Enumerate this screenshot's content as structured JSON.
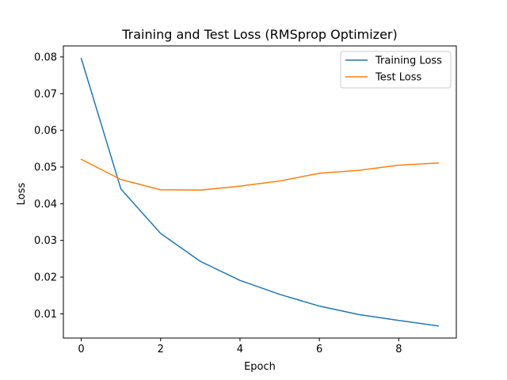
{
  "chart_data": {
    "type": "line",
    "title": "Training and Test Loss (RMSprop Optimizer)",
    "xlabel": "Epoch",
    "ylabel": "Loss",
    "x": [
      0,
      1,
      2,
      3,
      4,
      5,
      6,
      7,
      8,
      9
    ],
    "xticks": [
      "0",
      "2",
      "4",
      "6",
      "8"
    ],
    "xtick_values": [
      0,
      2,
      4,
      6,
      8
    ],
    "yticks": [
      "0.01",
      "0.02",
      "0.03",
      "0.04",
      "0.05",
      "0.06",
      "0.07",
      "0.08"
    ],
    "ytick_values": [
      0.01,
      0.02,
      0.03,
      0.04,
      0.05,
      0.06,
      0.07,
      0.08
    ],
    "xlim": [
      -0.45,
      9.45
    ],
    "ylim": [
      0.0034,
      0.083
    ],
    "grid": false,
    "legend_position": "top-right",
    "series": [
      {
        "name": "Training Loss",
        "color": "#1f77b4",
        "values": [
          0.0796,
          0.044,
          0.0319,
          0.0243,
          0.0191,
          0.0153,
          0.0121,
          0.0098,
          0.0082,
          0.0067
        ]
      },
      {
        "name": "Test Loss",
        "color": "#ff7f0e",
        "values": [
          0.0521,
          0.0466,
          0.0438,
          0.0437,
          0.0448,
          0.0462,
          0.0483,
          0.0491,
          0.0505,
          0.0511
        ]
      }
    ]
  }
}
